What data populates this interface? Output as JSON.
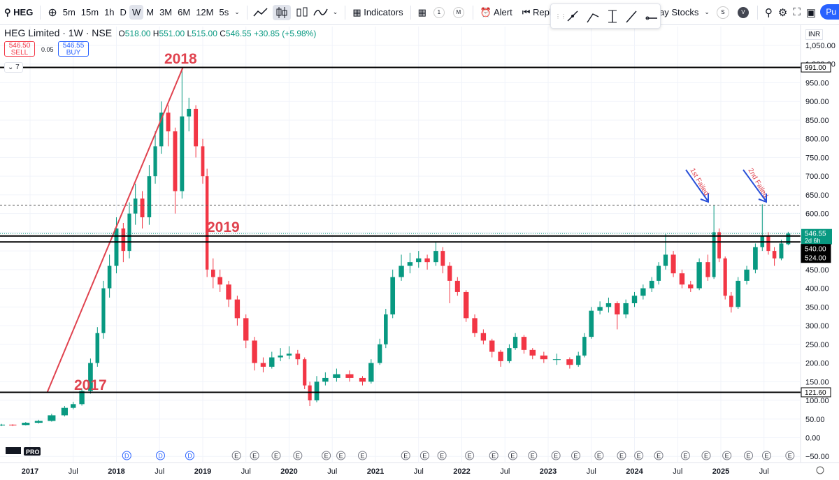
{
  "toolbar": {
    "symbol": "HEG",
    "intervals": [
      "5m",
      "15m",
      "1h",
      "D",
      "W",
      "M",
      "3M",
      "6M",
      "12M",
      "5s"
    ],
    "indicators": "Indicators",
    "badges": [
      "1",
      "M"
    ],
    "alert": "Alert",
    "replay": "Repla",
    "stocks": "ay Stocks",
    "avatars": [
      "S",
      "V"
    ],
    "publish": "Pu"
  },
  "legend": {
    "title": "HEG Limited · 1W · NSE",
    "ohlc": [
      {
        "key": "O",
        "value": "518.00"
      },
      {
        "key": "H",
        "value": "551.00"
      },
      {
        "key": "L",
        "value": "515.00"
      },
      {
        "key": "C",
        "value": "546.55"
      }
    ],
    "change": "+30.85 (+5.98%)",
    "sell_price": "546.50",
    "sell": "SELL",
    "spread": "0.05",
    "buy_price": "546.55",
    "buy": "BUY",
    "indicator_count": "7"
  },
  "currency": "INR",
  "logo": "PRO",
  "annotations": {
    "a2018": "2018",
    "a2019": "2019",
    "a2017": "2017",
    "first": "1st Failed",
    "second": "2nd Failed"
  },
  "chart_data": {
    "type": "candlestick",
    "up_color": "#089981",
    "down_color": "#f23645",
    "x": [
      2016.67,
      2016.8,
      2016.95,
      2017.1,
      2017.25,
      2017.4,
      2017.5,
      2017.6,
      2017.7,
      2017.78,
      2017.85,
      2017.92,
      2018.0,
      2018.08,
      2018.15,
      2018.22,
      2018.3,
      2018.38,
      2018.45,
      2018.52,
      2018.6,
      2018.68,
      2018.76,
      2018.84,
      2018.92,
      2019.0,
      2019.05,
      2019.12,
      2019.2,
      2019.3,
      2019.4,
      2019.5,
      2019.6,
      2019.7,
      2019.8,
      2019.9,
      2020.0,
      2020.1,
      2020.18,
      2020.24,
      2020.32,
      2020.42,
      2020.55,
      2020.7,
      2020.85,
      2020.95,
      2021.05,
      2021.12,
      2021.2,
      2021.3,
      2021.4,
      2021.5,
      2021.6,
      2021.7,
      2021.78,
      2021.86,
      2021.95,
      2022.05,
      2022.15,
      2022.25,
      2022.35,
      2022.45,
      2022.55,
      2022.62,
      2022.72,
      2022.82,
      2022.95,
      2023.1,
      2023.25,
      2023.35,
      2023.42,
      2023.5,
      2023.6,
      2023.7,
      2023.8,
      2023.9,
      2024.0,
      2024.1,
      2024.2,
      2024.28,
      2024.36,
      2024.45,
      2024.55,
      2024.65,
      2024.75,
      2024.85,
      2024.92,
      2024.98,
      2025.05,
      2025.12,
      2025.2,
      2025.3,
      2025.4,
      2025.48,
      2025.55,
      2025.62,
      2025.7,
      2025.78
    ],
    "open": [
      33,
      35,
      34,
      40,
      45,
      60,
      80,
      90,
      125,
      200,
      280,
      400,
      460,
      560,
      500,
      600,
      640,
      590,
      700,
      780,
      870,
      820,
      660,
      860,
      880,
      780,
      700,
      450,
      430,
      410,
      370,
      320,
      260,
      200,
      190,
      215,
      220,
      225,
      210,
      140,
      100,
      150,
      160,
      170,
      160,
      150,
      200,
      250,
      330,
      430,
      460,
      470,
      480,
      470,
      500,
      460,
      420,
      390,
      320,
      280,
      260,
      230,
      205,
      240,
      270,
      235,
      220,
      210,
      210,
      195,
      220,
      270,
      340,
      350,
      360,
      330,
      360,
      380,
      400,
      420,
      460,
      490,
      440,
      410,
      400,
      470,
      430,
      550,
      480,
      380,
      350,
      420,
      450,
      510,
      540,
      500,
      480,
      518
    ],
    "high": [
      37,
      36,
      42,
      48,
      64,
      85,
      96,
      132,
      212,
      296,
      420,
      490,
      590,
      575,
      630,
      680,
      660,
      730,
      820,
      900,
      890,
      830,
      991,
      910,
      890,
      800,
      720,
      480,
      450,
      420,
      380,
      330,
      270,
      215,
      230,
      240,
      245,
      235,
      215,
      150,
      165,
      175,
      185,
      180,
      165,
      210,
      265,
      345,
      450,
      490,
      495,
      500,
      490,
      525,
      510,
      470,
      430,
      395,
      330,
      290,
      265,
      235,
      250,
      280,
      275,
      240,
      230,
      225,
      215,
      230,
      280,
      350,
      365,
      375,
      365,
      370,
      390,
      410,
      430,
      470,
      545,
      500,
      450,
      420,
      480,
      490,
      622,
      560,
      485,
      390,
      430,
      460,
      520,
      625,
      550,
      510,
      530,
      551
    ],
    "low": [
      31,
      31,
      33,
      38,
      43,
      57,
      76,
      86,
      118,
      190,
      265,
      375,
      440,
      470,
      480,
      570,
      560,
      570,
      680,
      760,
      780,
      600,
      640,
      820,
      750,
      680,
      430,
      400,
      390,
      350,
      300,
      240,
      180,
      175,
      185,
      205,
      210,
      195,
      130,
      85,
      95,
      140,
      150,
      150,
      140,
      145,
      195,
      240,
      320,
      420,
      440,
      455,
      450,
      460,
      440,
      360,
      380,
      310,
      270,
      250,
      215,
      190,
      200,
      235,
      225,
      210,
      200,
      195,
      185,
      190,
      215,
      265,
      330,
      335,
      290,
      320,
      350,
      370,
      390,
      410,
      450,
      430,
      400,
      390,
      395,
      420,
      425,
      470,
      370,
      335,
      345,
      410,
      440,
      500,
      490,
      460,
      475,
      515
    ],
    "close": [
      35,
      34,
      40,
      45,
      60,
      80,
      90,
      125,
      200,
      280,
      400,
      460,
      560,
      500,
      600,
      640,
      590,
      700,
      780,
      870,
      820,
      660,
      860,
      880,
      780,
      700,
      450,
      430,
      410,
      370,
      320,
      260,
      200,
      190,
      215,
      220,
      225,
      210,
      140,
      100,
      150,
      160,
      170,
      160,
      150,
      200,
      250,
      330,
      430,
      460,
      470,
      480,
      470,
      500,
      460,
      420,
      390,
      320,
      280,
      260,
      230,
      205,
      240,
      270,
      235,
      220,
      210,
      210,
      195,
      220,
      270,
      340,
      350,
      360,
      330,
      360,
      380,
      400,
      420,
      460,
      490,
      440,
      410,
      400,
      470,
      430,
      550,
      480,
      380,
      350,
      420,
      450,
      510,
      540,
      500,
      480,
      520,
      546.55
    ],
    "xlim": [
      2016.652,
      2025.923
    ],
    "xticks": [
      {
        "value": 2017,
        "label": "2017"
      },
      {
        "value": 2017.5,
        "label": "Jul"
      },
      {
        "value": 2018,
        "label": "2018"
      },
      {
        "value": 2018.5,
        "label": "Jul"
      },
      {
        "value": 2019,
        "label": "2019"
      },
      {
        "value": 2019.5,
        "label": "Jul"
      },
      {
        "value": 2020,
        "label": "2020"
      },
      {
        "value": 2020.5,
        "label": "Jul"
      },
      {
        "value": 2021,
        "label": "2021"
      },
      {
        "value": 2021.5,
        "label": "Jul"
      },
      {
        "value": 2022,
        "label": "2022"
      },
      {
        "value": 2022.5,
        "label": "Jul"
      },
      {
        "value": 2023,
        "label": "2023"
      },
      {
        "value": 2023.5,
        "label": "Jul"
      },
      {
        "value": 2024,
        "label": "2024"
      },
      {
        "value": 2024.5,
        "label": "Jul"
      },
      {
        "value": 2025,
        "label": "2025"
      },
      {
        "value": 2025.5,
        "label": "Jul"
      }
    ],
    "ylim": [
      -66.4,
      1100.5
    ],
    "yticks": [
      {
        "value": 1050,
        "label": "1,050.00"
      },
      {
        "value": 1000,
        "label": "1,000.00"
      },
      {
        "value": 950,
        "label": "950.00"
      },
      {
        "value": 900,
        "label": "900.00"
      },
      {
        "value": 850,
        "label": "850.00"
      },
      {
        "value": 800,
        "label": "800.00"
      },
      {
        "value": 750,
        "label": "750.00"
      },
      {
        "value": 700,
        "label": "700.00"
      },
      {
        "value": 650,
        "label": "650.00"
      },
      {
        "value": 600,
        "label": "600.00"
      },
      {
        "value": 550,
        "label": "550.00"
      },
      {
        "value": 500,
        "label": "500.00"
      },
      {
        "value": 450,
        "label": "450.00"
      },
      {
        "value": 400,
        "label": "400.00"
      },
      {
        "value": 350,
        "label": "350.00"
      },
      {
        "value": 300,
        "label": "300.00"
      },
      {
        "value": 250,
        "label": "250.00"
      },
      {
        "value": 200,
        "label": "200.00"
      },
      {
        "value": 150,
        "label": "150.00"
      },
      {
        "value": 100,
        "label": "100.00"
      },
      {
        "value": 50,
        "label": "50.00"
      },
      {
        "value": 0,
        "label": "0.00"
      },
      {
        "value": -50,
        "label": "−50.00"
      }
    ],
    "levels": [
      {
        "value": 991,
        "label": "991.00",
        "style": "light"
      },
      {
        "value": 540,
        "label": "540.00",
        "style": "dark"
      },
      {
        "value": 524,
        "label": "524.00",
        "style": "dark"
      },
      {
        "value": 121.6,
        "label": "121.60",
        "style": "light"
      }
    ],
    "last_price": {
      "value": 546.55,
      "label": "546.55",
      "countdown": "2d 6h"
    },
    "dashed_level": 622,
    "trendline": {
      "x": [
        2017.2,
        2018.77
      ],
      "y": [
        122,
        991
      ]
    },
    "events": [
      {
        "x": 2018.12,
        "label": "D"
      },
      {
        "x": 2018.51,
        "label": "D"
      },
      {
        "x": 2018.85,
        "label": "D"
      },
      {
        "x": 2019.39,
        "label": "E"
      },
      {
        "x": 2019.6,
        "label": "E"
      },
      {
        "x": 2019.85,
        "label": "E"
      },
      {
        "x": 2020.1,
        "label": "E"
      },
      {
        "x": 2020.43,
        "label": "E"
      },
      {
        "x": 2020.6,
        "label": "E"
      },
      {
        "x": 2020.85,
        "label": "E"
      },
      {
        "x": 2021.35,
        "label": "E"
      },
      {
        "x": 2021.57,
        "label": "E"
      },
      {
        "x": 2021.77,
        "label": "E"
      },
      {
        "x": 2022.09,
        "label": "E"
      },
      {
        "x": 2022.37,
        "label": "E"
      },
      {
        "x": 2022.59,
        "label": "E"
      },
      {
        "x": 2022.82,
        "label": "E"
      },
      {
        "x": 2023.09,
        "label": "E"
      },
      {
        "x": 2023.32,
        "label": "E"
      },
      {
        "x": 2023.59,
        "label": "E"
      },
      {
        "x": 2023.85,
        "label": "E"
      },
      {
        "x": 2024.05,
        "label": "E"
      },
      {
        "x": 2024.28,
        "label": "E"
      },
      {
        "x": 2024.59,
        "label": "E"
      },
      {
        "x": 2024.83,
        "label": "E"
      },
      {
        "x": 2025.07,
        "label": "E"
      },
      {
        "x": 2025.32,
        "label": "E"
      },
      {
        "x": 2025.53,
        "label": "E"
      },
      {
        "x": 2025.8,
        "label": "E"
      }
    ]
  }
}
